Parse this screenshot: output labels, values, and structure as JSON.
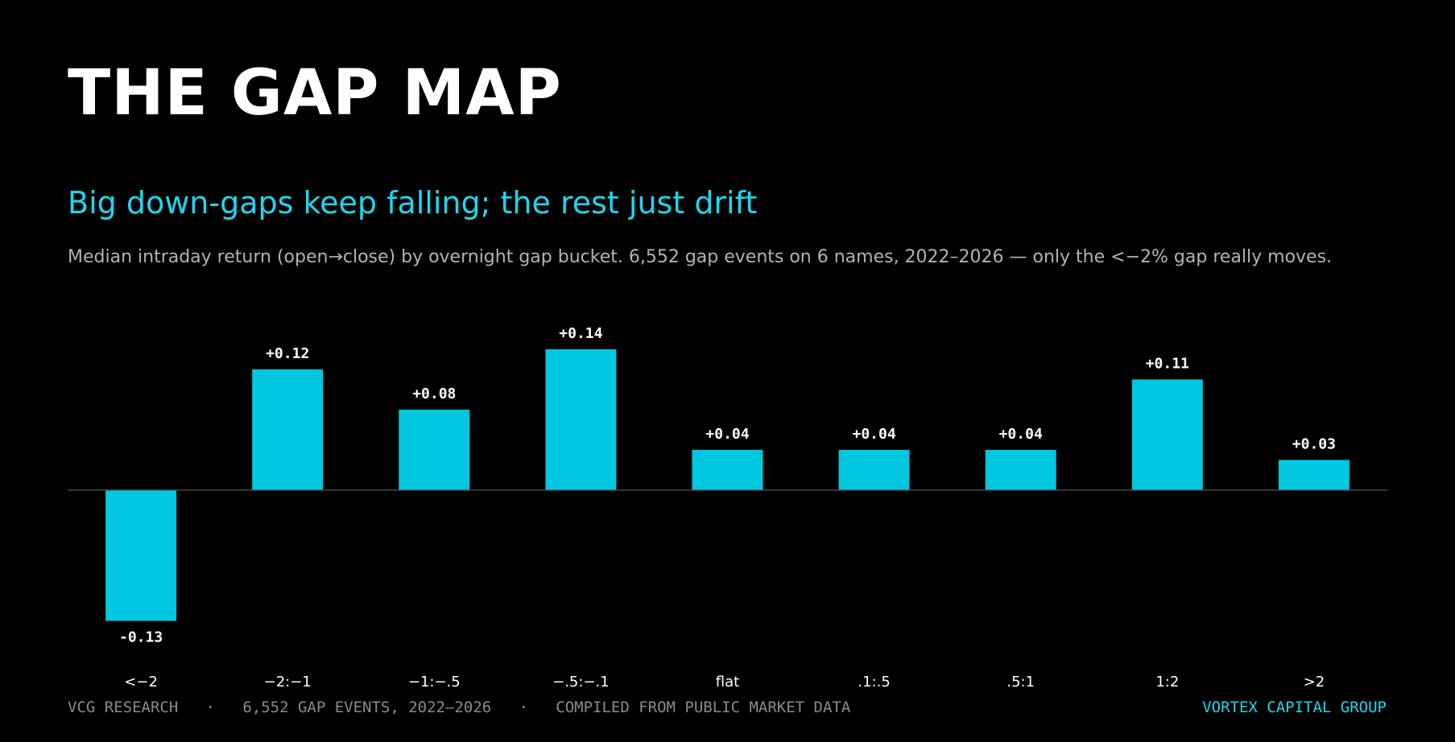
{
  "header": {
    "title": "THE GAP MAP",
    "subtitle": "Big down-gaps keep falling; the rest just drift",
    "description": "Median intraday return (open→close) by overnight gap bucket. 6,552 gap events on 6 names, 2022–2026 — only the <−2% gap really moves."
  },
  "footer": {
    "left": "VCG RESEARCH   ·   6,552 GAP EVENTS, 2022–2026   ·   COMPILED FROM PUBLIC MARKET DATA",
    "right": "VORTEX CAPITAL GROUP"
  },
  "colors": {
    "background": "#000000",
    "bar": "#00c8e0",
    "accent": "#1ad8ee",
    "baseline": "#555555",
    "label": "#ffffff"
  },
  "chart_data": {
    "type": "bar",
    "categories": [
      "<−2",
      "−2:−1",
      "−1:−.5",
      "−.5:−.1",
      "flat",
      ".1:.5",
      ".5:1",
      "1:2",
      ">2"
    ],
    "values": [
      -0.13,
      0.12,
      0.08,
      0.14,
      0.04,
      0.04,
      0.04,
      0.11,
      0.03
    ],
    "value_labels": [
      "-0.13",
      "+0.12",
      "+0.08",
      "+0.14",
      "+0.04",
      "+0.04",
      "+0.04",
      "+0.11",
      "+0.03"
    ],
    "title": "",
    "xlabel": "",
    "ylabel": "",
    "ylim": [
      -0.15,
      0.15
    ],
    "grid": false,
    "legend": "none"
  }
}
